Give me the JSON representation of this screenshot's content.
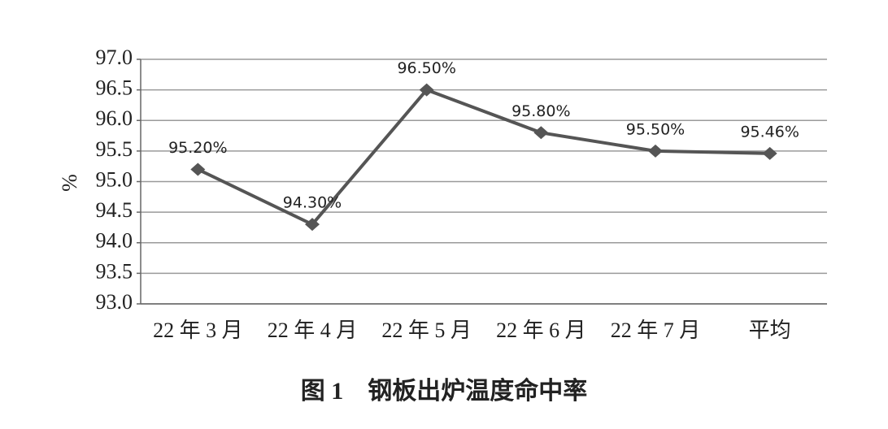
{
  "chart_data": {
    "type": "line",
    "title": "图 1　钢板出炉温度命中率",
    "y_label": "%",
    "categories": [
      "22 年 3 月",
      "22 年 4 月",
      "22 年 5 月",
      "22 年 6 月",
      "22 年 7 月",
      "平均"
    ],
    "values": [
      95.2,
      94.3,
      96.5,
      95.8,
      95.5,
      95.46
    ],
    "value_labels": [
      "95.20%",
      "94.30%",
      "96.50%",
      "95.80%",
      "95.50%",
      "95.46%"
    ],
    "color": "#555555",
    "ylim": [
      93,
      97
    ],
    "yticks": [
      {
        "value": 93,
        "label": "93.0"
      },
      {
        "value": 93.5,
        "label": "93.5"
      },
      {
        "value": 94,
        "label": "94.0"
      },
      {
        "value": 94.5,
        "label": "94.5"
      },
      {
        "value": 95,
        "label": "95.0"
      },
      {
        "value": 95.5,
        "label": "95.5"
      },
      {
        "value": 96,
        "label": "96.0"
      },
      {
        "value": 96.5,
        "label": "96.5"
      },
      {
        "value": 97,
        "label": "97.0"
      }
    ],
    "grid": true
  }
}
